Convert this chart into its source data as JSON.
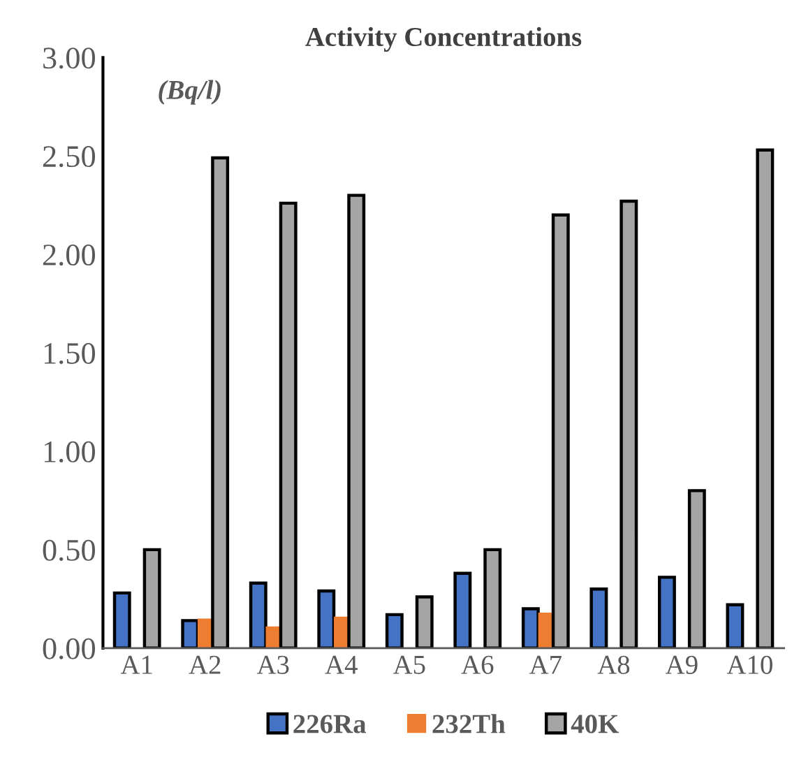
{
  "chart_data": {
    "type": "bar",
    "title": "Activity Concentrations",
    "annotations": [
      "(Bq/l)"
    ],
    "categories": [
      "A1",
      "A2",
      "A3",
      "A4",
      "A5",
      "A6",
      "A7",
      "A8",
      "A9",
      "A10"
    ],
    "series": [
      {
        "name": "226Ra",
        "color": "#4472c4",
        "values": [
          0.28,
          0.14,
          0.33,
          0.29,
          0.17,
          0.38,
          0.2,
          0.3,
          0.36,
          0.22
        ]
      },
      {
        "name": "232Th",
        "color": "#ed7d31",
        "values": [
          null,
          0.15,
          0.11,
          0.16,
          null,
          null,
          0.18,
          null,
          null,
          null
        ]
      },
      {
        "name": "40K",
        "color": "#a5a5a5",
        "values": [
          0.5,
          2.49,
          2.26,
          2.3,
          0.26,
          0.5,
          2.2,
          2.27,
          0.8,
          2.53
        ]
      }
    ],
    "ylim": [
      0,
      3
    ],
    "yticks": [
      {
        "value": 0,
        "label": "0.00"
      },
      {
        "value": 0.5,
        "label": "0.50"
      },
      {
        "value": 1,
        "label": "1.00"
      },
      {
        "value": 1.5,
        "label": "1.50"
      },
      {
        "value": 2,
        "label": "2.00"
      },
      {
        "value": 2.5,
        "label": "2.50"
      },
      {
        "value": 3,
        "label": "3.00"
      }
    ],
    "grid": false,
    "legend": "bottom"
  }
}
